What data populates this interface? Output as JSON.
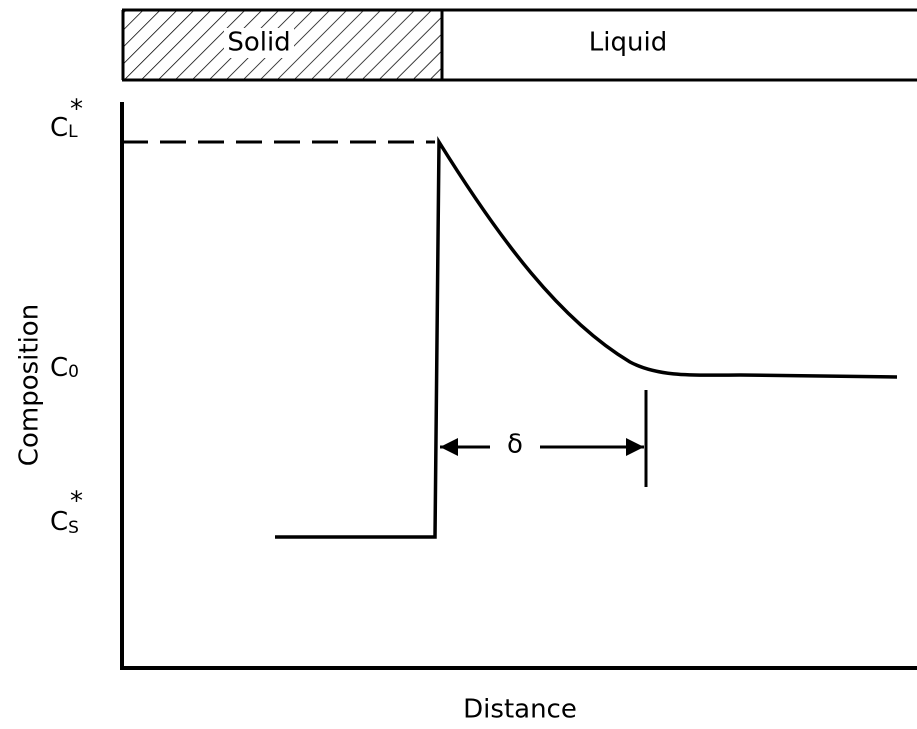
{
  "header": {
    "solid": "Solid",
    "liquid": "Liquid"
  },
  "axes": {
    "y_label": "Composition",
    "x_label": "Distance"
  },
  "levels": [
    {
      "symbol": "C",
      "subscript": "L",
      "superscript": "*"
    },
    {
      "symbol": "C",
      "subscript": "0"
    },
    {
      "symbol": "C",
      "subscript": "S",
      "superscript": "*"
    }
  ],
  "annotation": "δ"
}
